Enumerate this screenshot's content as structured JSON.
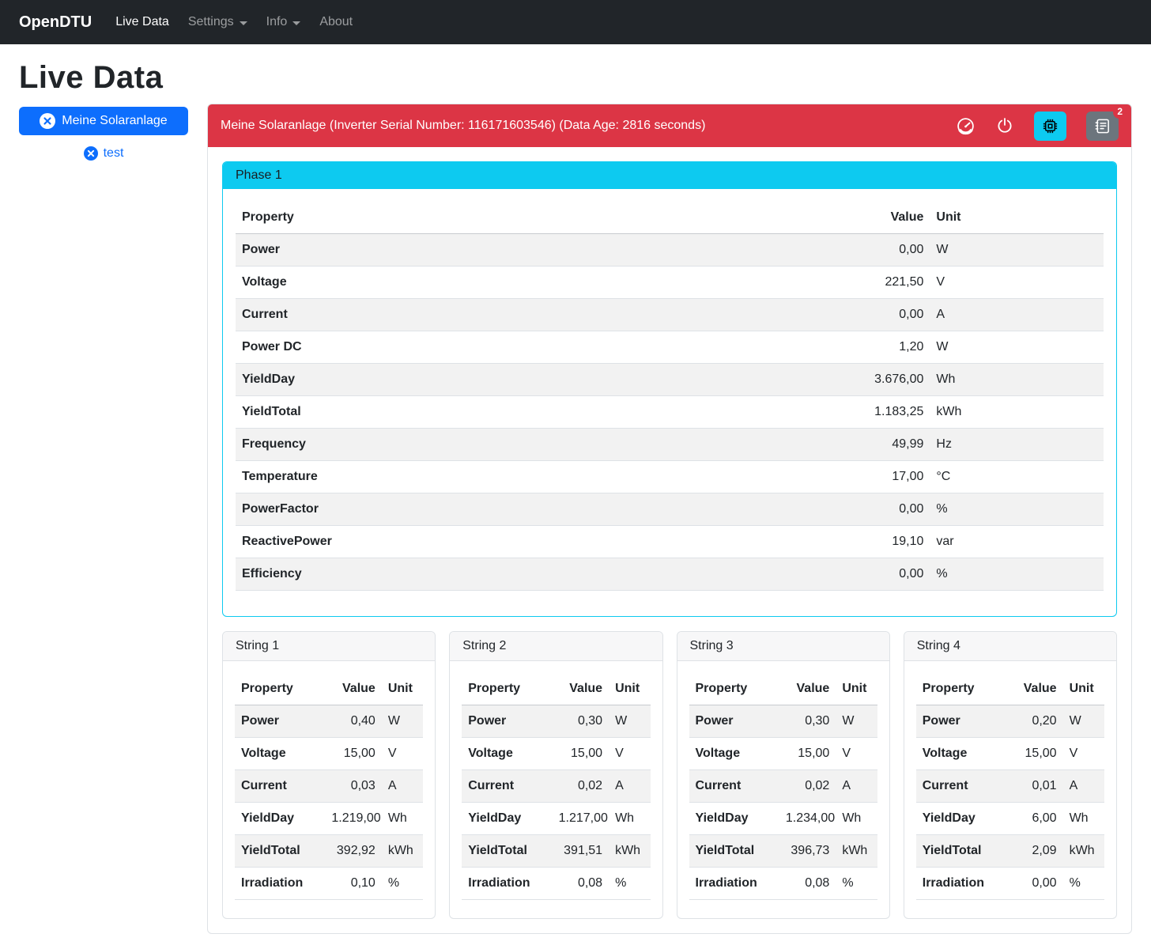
{
  "navbar": {
    "brand": "OpenDTU",
    "items": [
      {
        "label": "Live Data"
      },
      {
        "label": "Settings"
      },
      {
        "label": "Info"
      },
      {
        "label": "About"
      }
    ]
  },
  "page_title": "Live Data",
  "selector": {
    "primary_label": "Meine Solaranlage",
    "secondary_label": "test"
  },
  "inverter": {
    "header": "Meine Solaranlage (Inverter Serial Number: 116171603546) (Data Age: 2816 seconds)",
    "event_count": "2"
  },
  "table_columns": {
    "property": "Property",
    "value": "Value",
    "unit": "Unit"
  },
  "phase": {
    "title": "Phase 1",
    "rows": [
      [
        "Power",
        "0,00",
        "W"
      ],
      [
        "Voltage",
        "221,50",
        "V"
      ],
      [
        "Current",
        "0,00",
        "A"
      ],
      [
        "Power DC",
        "1,20",
        "W"
      ],
      [
        "YieldDay",
        "3.676,00",
        "Wh"
      ],
      [
        "YieldTotal",
        "1.183,25",
        "kWh"
      ],
      [
        "Frequency",
        "49,99",
        "Hz"
      ],
      [
        "Temperature",
        "17,00",
        "°C"
      ],
      [
        "PowerFactor",
        "0,00",
        "%"
      ],
      [
        "ReactivePower",
        "19,10",
        "var"
      ],
      [
        "Efficiency",
        "0,00",
        "%"
      ]
    ]
  },
  "strings": [
    {
      "title": "String 1",
      "rows": [
        [
          "Power",
          "0,40",
          "W"
        ],
        [
          "Voltage",
          "15,00",
          "V"
        ],
        [
          "Current",
          "0,03",
          "A"
        ],
        [
          "YieldDay",
          "1.219,00",
          "Wh"
        ],
        [
          "YieldTotal",
          "392,92",
          "kWh"
        ],
        [
          "Irradiation",
          "0,10",
          "%"
        ]
      ]
    },
    {
      "title": "String 2",
      "rows": [
        [
          "Power",
          "0,30",
          "W"
        ],
        [
          "Voltage",
          "15,00",
          "V"
        ],
        [
          "Current",
          "0,02",
          "A"
        ],
        [
          "YieldDay",
          "1.217,00",
          "Wh"
        ],
        [
          "YieldTotal",
          "391,51",
          "kWh"
        ],
        [
          "Irradiation",
          "0,08",
          "%"
        ]
      ]
    },
    {
      "title": "String 3",
      "rows": [
        [
          "Power",
          "0,30",
          "W"
        ],
        [
          "Voltage",
          "15,00",
          "V"
        ],
        [
          "Current",
          "0,02",
          "A"
        ],
        [
          "YieldDay",
          "1.234,00",
          "Wh"
        ],
        [
          "YieldTotal",
          "396,73",
          "kWh"
        ],
        [
          "Irradiation",
          "0,08",
          "%"
        ]
      ]
    },
    {
      "title": "String 4",
      "rows": [
        [
          "Power",
          "0,20",
          "W"
        ],
        [
          "Voltage",
          "15,00",
          "V"
        ],
        [
          "Current",
          "0,01",
          "A"
        ],
        [
          "YieldDay",
          "6,00",
          "Wh"
        ],
        [
          "YieldTotal",
          "2,09",
          "kWh"
        ],
        [
          "Irradiation",
          "0,00",
          "%"
        ]
      ]
    }
  ],
  "colors": {
    "navbar_bg": "#212529",
    "primary": "#0d6efd",
    "danger": "#dc3545",
    "info": "#0dcaf0",
    "secondary": "#6c757d"
  }
}
